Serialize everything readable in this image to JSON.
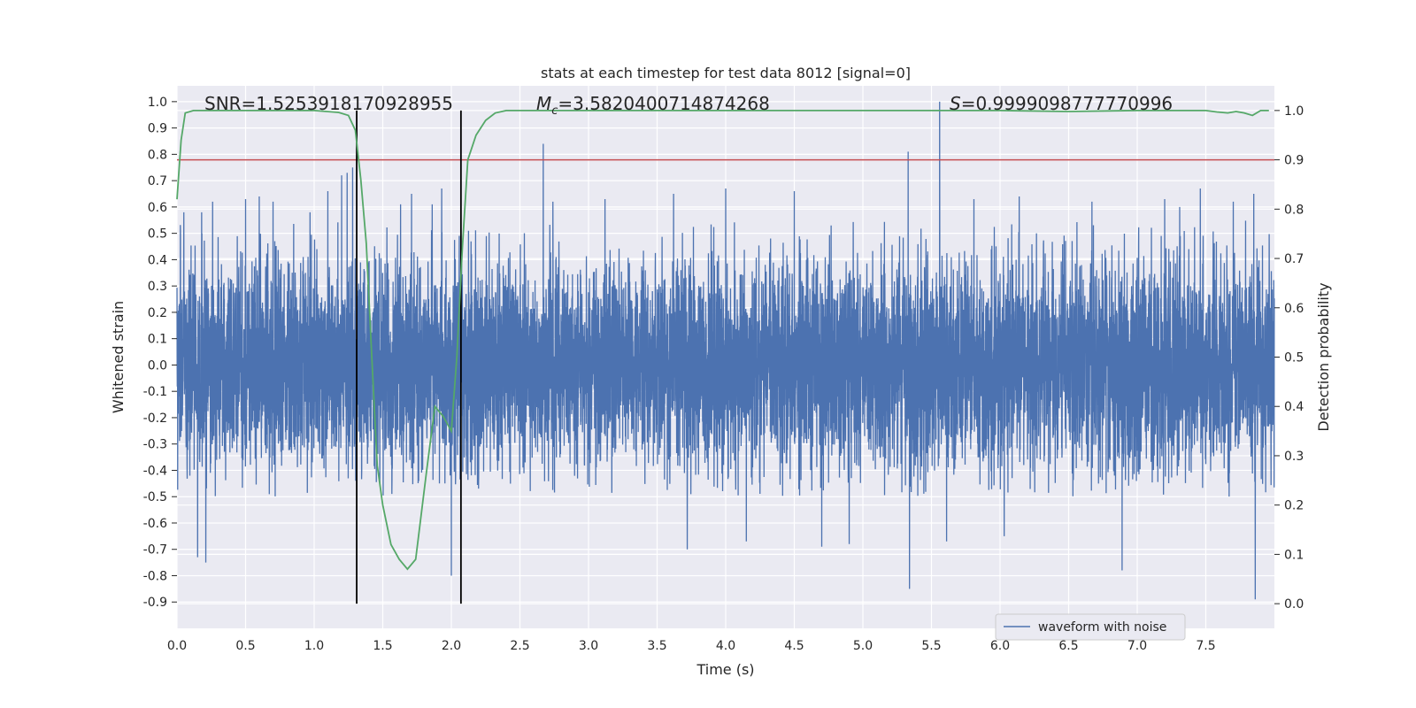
{
  "chart_data": {
    "type": "line",
    "title": "stats at each timestep for test data 8012 [signal=0]",
    "xlabel": "Time (s)",
    "ylabel": "Whitened strain",
    "y2label": "Detection probability",
    "xlim": [
      0.0,
      8.0
    ],
    "ylim": [
      -1.0,
      1.06
    ],
    "y2lim": [
      -0.05,
      1.05
    ],
    "xticks": [
      "0.0",
      "0.5",
      "1.0",
      "1.5",
      "2.0",
      "2.5",
      "3.0",
      "3.5",
      "4.0",
      "4.5",
      "5.0",
      "5.5",
      "6.0",
      "6.5",
      "7.0",
      "7.5"
    ],
    "yticks": [
      "1.0",
      "0.9",
      "0.8",
      "0.7",
      "0.6",
      "0.5",
      "0.4",
      "0.3",
      "0.2",
      "0.1",
      "0.0",
      "-0.1",
      "-0.2",
      "-0.3",
      "-0.4",
      "-0.5",
      "-0.6",
      "-0.7",
      "-0.8",
      "-0.9"
    ],
    "y2ticks": [
      "1.0",
      "0.9",
      "0.8",
      "0.7",
      "0.6",
      "0.5",
      "0.4",
      "0.3",
      "0.2",
      "0.1",
      "0.0"
    ],
    "grid": true,
    "legend_position": "lower-right",
    "annotations": {
      "snr": "SNR=1.5253918170928955",
      "mc_symbol": "M",
      "mc_sub": "c",
      "mc_value": "=3.5820400714874268",
      "s_symbol": "S",
      "s_value": "=0.9999098777770996"
    },
    "series": [
      {
        "name": "waveform with noise",
        "axis": "left",
        "color": "#4c72b0",
        "sample_rate": 1024,
        "duration": 8.0,
        "noise_envelope": {
          "typical_max": 0.55,
          "typical_min": -0.5
        },
        "peaks": [
          {
            "x": 0.05,
            "y": 0.58
          },
          {
            "x": 0.15,
            "y": -0.73
          },
          {
            "x": 0.18,
            "y": 0.58
          },
          {
            "x": 0.21,
            "y": -0.75
          },
          {
            "x": 0.26,
            "y": 0.62
          },
          {
            "x": 0.5,
            "y": 0.63
          },
          {
            "x": 0.6,
            "y": 0.64
          },
          {
            "x": 0.7,
            "y": 0.62
          },
          {
            "x": 0.97,
            "y": 0.58
          },
          {
            "x": 1.1,
            "y": 0.66
          },
          {
            "x": 1.2,
            "y": 0.72
          },
          {
            "x": 1.24,
            "y": 0.73
          },
          {
            "x": 1.28,
            "y": 0.75
          },
          {
            "x": 1.63,
            "y": 0.61
          },
          {
            "x": 1.71,
            "y": 0.65
          },
          {
            "x": 1.86,
            "y": 0.61
          },
          {
            "x": 1.93,
            "y": 0.67
          },
          {
            "x": 2.0,
            "y": -0.8
          },
          {
            "x": 2.67,
            "y": 0.84
          },
          {
            "x": 2.74,
            "y": 0.62
          },
          {
            "x": 3.12,
            "y": 0.63
          },
          {
            "x": 3.62,
            "y": 0.65
          },
          {
            "x": 3.72,
            "y": -0.7
          },
          {
            "x": 4.0,
            "y": 0.67
          },
          {
            "x": 4.15,
            "y": -0.67
          },
          {
            "x": 4.5,
            "y": 0.66
          },
          {
            "x": 4.7,
            "y": -0.69
          },
          {
            "x": 4.9,
            "y": -0.68
          },
          {
            "x": 5.33,
            "y": 0.81
          },
          {
            "x": 5.34,
            "y": -0.85
          },
          {
            "x": 5.56,
            "y": 1.0
          },
          {
            "x": 5.61,
            "y": -0.67
          },
          {
            "x": 5.81,
            "y": 0.63
          },
          {
            "x": 6.03,
            "y": -0.65
          },
          {
            "x": 6.14,
            "y": 0.64
          },
          {
            "x": 6.67,
            "y": 0.62
          },
          {
            "x": 6.89,
            "y": -0.78
          },
          {
            "x": 7.2,
            "y": 0.63
          },
          {
            "x": 7.31,
            "y": 0.6
          },
          {
            "x": 7.46,
            "y": 0.67
          },
          {
            "x": 7.7,
            "y": 0.62
          },
          {
            "x": 7.85,
            "y": 0.65
          },
          {
            "x": 7.86,
            "y": -0.89
          }
        ]
      },
      {
        "name": "",
        "axis": "right",
        "color": "#55a868",
        "x": [
          0.0,
          0.03,
          0.06,
          0.12,
          0.5,
          1.0,
          1.18,
          1.25,
          1.3,
          1.34,
          1.38,
          1.42,
          1.46,
          1.5,
          1.56,
          1.62,
          1.68,
          1.74,
          1.82,
          1.88,
          1.94,
          2.0,
          2.04,
          2.08,
          2.12,
          2.18,
          2.25,
          2.32,
          2.4,
          2.6,
          3.0,
          4.0,
          5.0,
          5.5,
          6.0,
          6.5,
          7.0,
          7.3,
          7.5,
          7.58,
          7.66,
          7.72,
          7.78,
          7.84,
          7.9,
          7.96
        ],
        "values": [
          0.82,
          0.94,
          0.995,
          1.0,
          1.0,
          1.0,
          0.996,
          0.99,
          0.96,
          0.86,
          0.73,
          0.5,
          0.28,
          0.2,
          0.12,
          0.09,
          0.07,
          0.09,
          0.27,
          0.4,
          0.38,
          0.35,
          0.5,
          0.72,
          0.9,
          0.95,
          0.98,
          0.995,
          1.0,
          1.0,
          1.0,
          1.0,
          1.0,
          1.0,
          1.0,
          0.998,
          1.0,
          1.0,
          1.0,
          0.997,
          0.995,
          0.998,
          0.995,
          0.99,
          1.0,
          1.0
        ]
      }
    ],
    "horizontal_lines": [
      {
        "axis": "right",
        "y": 0.9,
        "color": "#c44e52"
      }
    ],
    "vertical_lines": [
      {
        "x": 1.31,
        "y_from": 0.0,
        "y_to": 1.0,
        "axis": "right",
        "color": "#000000"
      },
      {
        "x": 2.07,
        "y_from": 0.0,
        "y_to": 1.0,
        "axis": "right",
        "color": "#000000"
      }
    ]
  }
}
